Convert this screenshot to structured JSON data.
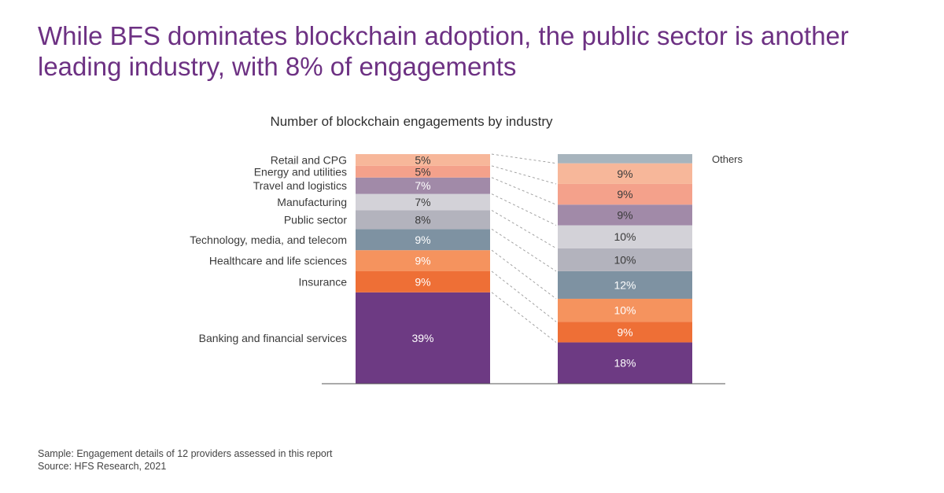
{
  "headline": "While BFS dominates blockchain adoption, the public sector is another leading industry, with 8% of engagements",
  "footer": {
    "sample": "Sample: Engagement details of 12 providers assessed in this report",
    "source": "Source: HFS Research, 2021"
  },
  "chart_data": {
    "type": "bar",
    "stacked": true,
    "title": "Number of blockchain engagements by industry",
    "xlabel": "",
    "ylabel": "",
    "ylim": [
      0,
      100
    ],
    "grid": false,
    "legend": "none",
    "series": [
      {
        "values": [
          {
            "category": "Banking and financial services",
            "value": 39,
            "label": "39%",
            "color": "#6d3a83",
            "text_color": "#ffffff"
          },
          {
            "category": "Insurance",
            "value": 9,
            "label": "9%",
            "color": "#ee6f36",
            "text_color": "#ffffff"
          },
          {
            "category": "Healthcare and life sciences",
            "value": 9,
            "label": "9%",
            "color": "#f5935e",
            "text_color": "#ffffff"
          },
          {
            "category": "Technology, media, and telecom",
            "value": 9,
            "label": "9%",
            "color": "#7e92a2",
            "text_color": "#ffffff"
          },
          {
            "category": "Public sector",
            "value": 8,
            "label": "8%",
            "color": "#b3b3bd",
            "text_color": "#3a3a3a"
          },
          {
            "category": "Manufacturing",
            "value": 7,
            "label": "7%",
            "color": "#d3d2d8",
            "text_color": "#3a3a3a"
          },
          {
            "category": "Travel and logistics",
            "value": 7,
            "label": "7%",
            "color": "#a18aa8",
            "text_color": "#ffffff"
          },
          {
            "category": "Energy and utilities",
            "value": 5,
            "label": "5%",
            "color": "#f4a18b",
            "text_color": "#3a3a3a"
          },
          {
            "category": "Retail and CPG",
            "value": 5,
            "label": "5%",
            "color": "#f7b79a",
            "text_color": "#3a3a3a"
          }
        ]
      },
      {
        "values": [
          {
            "category": "Banking and financial services",
            "value": 18,
            "label": "18%",
            "color": "#6d3a83",
            "text_color": "#ffffff"
          },
          {
            "category": "Insurance",
            "value": 9,
            "label": "9%",
            "color": "#ee6f36",
            "text_color": "#ffffff"
          },
          {
            "category": "Healthcare and life sciences",
            "value": 10,
            "label": "10%",
            "color": "#f5935e",
            "text_color": "#ffffff"
          },
          {
            "category": "Technology, media, and telecom",
            "value": 12,
            "label": "12%",
            "color": "#7e92a2",
            "text_color": "#ffffff"
          },
          {
            "category": "Public sector",
            "value": 10,
            "label": "10%",
            "color": "#b3b3bd",
            "text_color": "#3a3a3a"
          },
          {
            "category": "Manufacturing",
            "value": 10,
            "label": "10%",
            "color": "#d3d2d8",
            "text_color": "#3a3a3a"
          },
          {
            "category": "Travel and logistics",
            "value": 9,
            "label": "9%",
            "color": "#a18aa8",
            "text_color": "#3a3a3a"
          },
          {
            "category": "Energy and utilities",
            "value": 9,
            "label": "9%",
            "color": "#f4a18b",
            "text_color": "#3a3a3a"
          },
          {
            "category": "Retail and CPG",
            "value": 9,
            "label": "9%",
            "color": "#f7b79a",
            "text_color": "#3a3a3a"
          },
          {
            "category": "Others",
            "value": 4,
            "label": "",
            "color": "#a7b4bd",
            "text_color": "#3a3a3a"
          }
        ]
      }
    ],
    "side_label": "Others",
    "connector_style": "dashed"
  }
}
